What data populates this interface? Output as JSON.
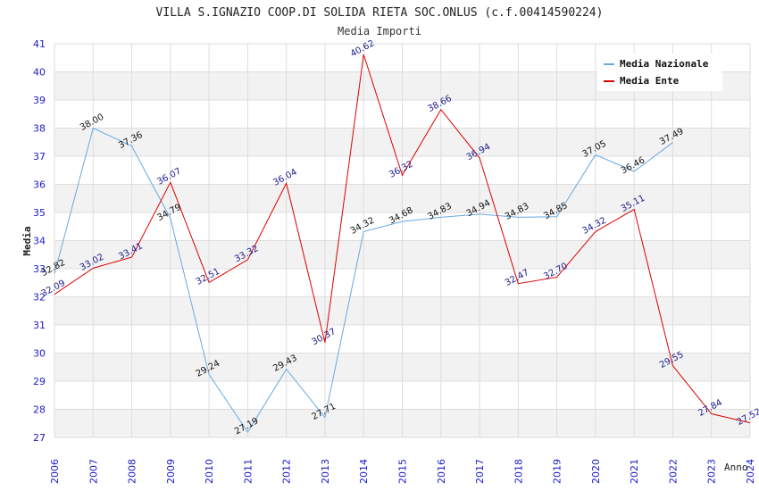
{
  "chart_data": {
    "type": "line",
    "title": "VILLA S.IGNAZIO COOP.DI SOLIDA RIETA SOC.ONLUS (c.f.00414590224)",
    "subtitle": "Media Importi",
    "xlabel": "Anno",
    "ylabel": "Media",
    "ylim": [
      27,
      41
    ],
    "yticks": [
      "27",
      "28",
      "29",
      "30",
      "31",
      "32",
      "33",
      "34",
      "35",
      "36",
      "37",
      "38",
      "39",
      "40",
      "41"
    ],
    "categories": [
      "2006",
      "2007",
      "2008",
      "2009",
      "2010",
      "2011",
      "2012",
      "2013",
      "2014",
      "2015",
      "2016",
      "2017",
      "2018",
      "2019",
      "2020",
      "2021",
      "2022",
      "2023",
      "2024"
    ],
    "legend_position": "top-right",
    "series": [
      {
        "name": "Media Nazionale",
        "color": "#6aa8e0",
        "values": [
          32.82,
          38.0,
          37.36,
          34.79,
          29.24,
          27.19,
          29.43,
          27.71,
          34.32,
          34.68,
          34.83,
          34.94,
          34.83,
          34.85,
          37.05,
          36.46,
          37.49,
          null,
          null
        ],
        "labels": [
          "32.82",
          "38.00",
          "37.36",
          "34.79",
          "29.24",
          "27.19",
          "29.43",
          "27.71",
          "34.32",
          "34.68",
          "34.83",
          "34.94",
          "34.83",
          "34.85",
          "37.05",
          "36.46",
          "37.49",
          "",
          ""
        ]
      },
      {
        "name": "Media Ente",
        "color": "#dd0000",
        "values": [
          32.09,
          33.02,
          33.41,
          36.07,
          32.51,
          33.32,
          36.04,
          30.37,
          40.62,
          36.32,
          38.66,
          36.94,
          32.47,
          32.7,
          34.32,
          35.11,
          29.55,
          27.84,
          27.52
        ],
        "labels": [
          "32.09",
          "33.02",
          "33.41",
          "36.07",
          "32.51",
          "33.32",
          "36.04",
          "30.37",
          "40.62",
          "36.32",
          "38.66",
          "36.94",
          "32.47",
          "32.70",
          "34.32",
          "35.11",
          "29.55",
          "27.84",
          "27.52"
        ]
      }
    ]
  }
}
